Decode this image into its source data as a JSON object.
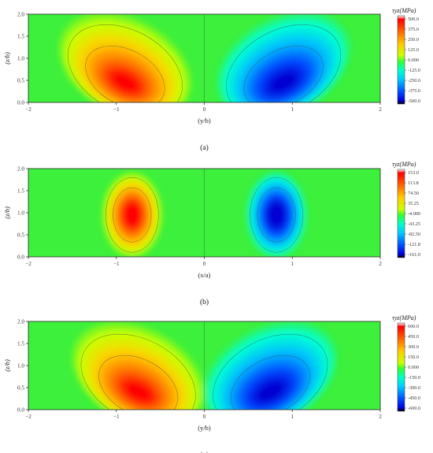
{
  "chart_data": [
    {
      "type": "heatmap",
      "panel_label": "(a)",
      "title": "",
      "xlabel": "(y/b)",
      "ylabel": "(z/b)",
      "xlim": [
        -2,
        2
      ],
      "ylim": [
        0,
        2
      ],
      "x_ticks": [
        "-2",
        "-1",
        "0",
        "1",
        "2"
      ],
      "y_ticks": [
        "0.0",
        "0.5",
        "1.0",
        "1.5",
        "2.0"
      ],
      "colorbar_title": "τyz(MPa)",
      "colorbar_range": [
        -500,
        500
      ],
      "colorbar_ticks": [
        "500.0",
        "375.0",
        "250.0",
        "125.0",
        "0.000",
        "-125.0",
        "-250.0",
        "-375.0",
        "-500.0"
      ],
      "extrema": [
        {
          "x": -0.9,
          "y": 0.45,
          "value": 500
        },
        {
          "x": 0.9,
          "y": 0.45,
          "value": -500
        }
      ]
    },
    {
      "type": "heatmap",
      "panel_label": "(b)",
      "title": "",
      "xlabel": "(x/a)",
      "ylabel": "(z/b)",
      "xlim": [
        -2,
        2
      ],
      "ylim": [
        0,
        2
      ],
      "x_ticks": [
        "-2",
        "-1",
        "0",
        "1",
        "2"
      ],
      "y_ticks": [
        "0.0",
        "0.5",
        "1.0",
        "1.5",
        "2.0"
      ],
      "colorbar_title": "τyz(MPa)",
      "colorbar_range": [
        -161,
        153
      ],
      "colorbar_ticks": [
        "153.0",
        "113.8",
        "74.50",
        "35.25",
        "-4.000",
        "-43.25",
        "-82.50",
        "-121.8",
        "-161.0"
      ],
      "extrema": [
        {
          "x": -0.82,
          "y": 0.95,
          "value": 153
        },
        {
          "x": 0.82,
          "y": 0.95,
          "value": -161
        }
      ]
    },
    {
      "type": "heatmap",
      "panel_label": "(c)",
      "title": "",
      "xlabel": "(y/b)",
      "ylabel": "(z/b)",
      "xlim": [
        -2,
        2
      ],
      "ylim": [
        0,
        2
      ],
      "x_ticks": [
        "-2",
        "-1",
        "0",
        "1",
        "2"
      ],
      "y_ticks": [
        "0.0",
        "0.5",
        "1.0",
        "1.5",
        "2.0"
      ],
      "colorbar_title": "τyz(MPa)",
      "colorbar_range": [
        -600,
        600
      ],
      "colorbar_ticks": [
        "600.0",
        "450.0",
        "300.0",
        "150.0",
        "0.000",
        "-150.0",
        "-300.0",
        "-450.0",
        "-600.0"
      ],
      "extrema": [
        {
          "x": -0.75,
          "y": 0.4,
          "value": 600
        },
        {
          "x": 0.75,
          "y": 0.4,
          "value": -600
        }
      ]
    }
  ]
}
